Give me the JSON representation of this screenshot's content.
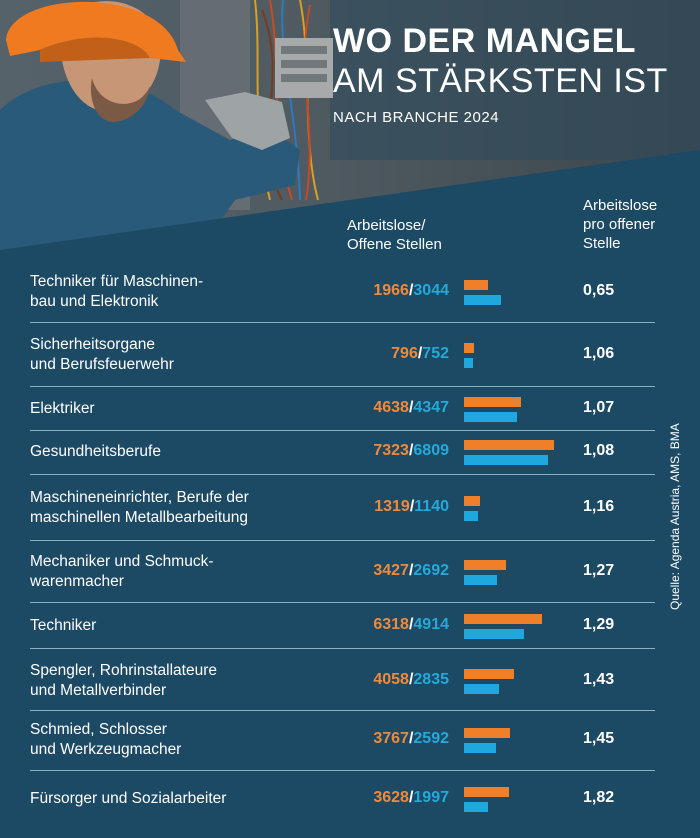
{
  "header": {
    "title_line1": "WO DER MANGEL",
    "title_line2": "AM STÄRKSTEN IST",
    "subtitle": "NACH BRANCHE 2024"
  },
  "columns": {
    "ratio_header": [
      "Arbeitslose/",
      "Offene Stellen"
    ],
    "per_header": [
      "Arbeitslose",
      "pro offener",
      "Stelle"
    ]
  },
  "source": "Quelle: Agenda Austria, AMS, BMA",
  "colors": {
    "background": "#1c4964",
    "unemployed": "#f07f2a",
    "open_positions": "#1fa8de",
    "text": "#ffffff"
  },
  "chart_data": {
    "type": "bar",
    "orientation": "horizontal",
    "categories": [
      [
        "Techniker für Maschinen-",
        "bau und Elektronik"
      ],
      [
        "Sicherheitsorgane",
        "und Berufsfeuerwehr"
      ],
      [
        "Elektriker"
      ],
      [
        "Gesundheitsberufe"
      ],
      [
        "Maschineneinrichter, Berufe der",
        "maschinellen Metallbearbeitung"
      ],
      [
        "Mechaniker und Schmuck-",
        "warenmacher"
      ],
      [
        "Techniker"
      ],
      [
        "Spengler, Rohrinstallateure",
        "und Metallverbinder"
      ],
      [
        "Schmied, Schlosser",
        "und Werkzeugmacher"
      ],
      [
        "Fürsorger und Sozialarbeiter"
      ]
    ],
    "series": [
      {
        "name": "Arbeitslose",
        "values": [
          1966,
          796,
          4638,
          7323,
          1319,
          3427,
          6318,
          4058,
          3767,
          3628
        ]
      },
      {
        "name": "Offene Stellen",
        "values": [
          3044,
          752,
          4347,
          6809,
          1140,
          2692,
          4914,
          2835,
          2592,
          1997
        ]
      }
    ],
    "ratio": [
      "0,65",
      "1,06",
      "1,07",
      "1,08",
      "1,16",
      "1,27",
      "1,29",
      "1,43",
      "1,45",
      "1,82"
    ],
    "xlim": [
      0,
      7500
    ],
    "grid": false
  }
}
